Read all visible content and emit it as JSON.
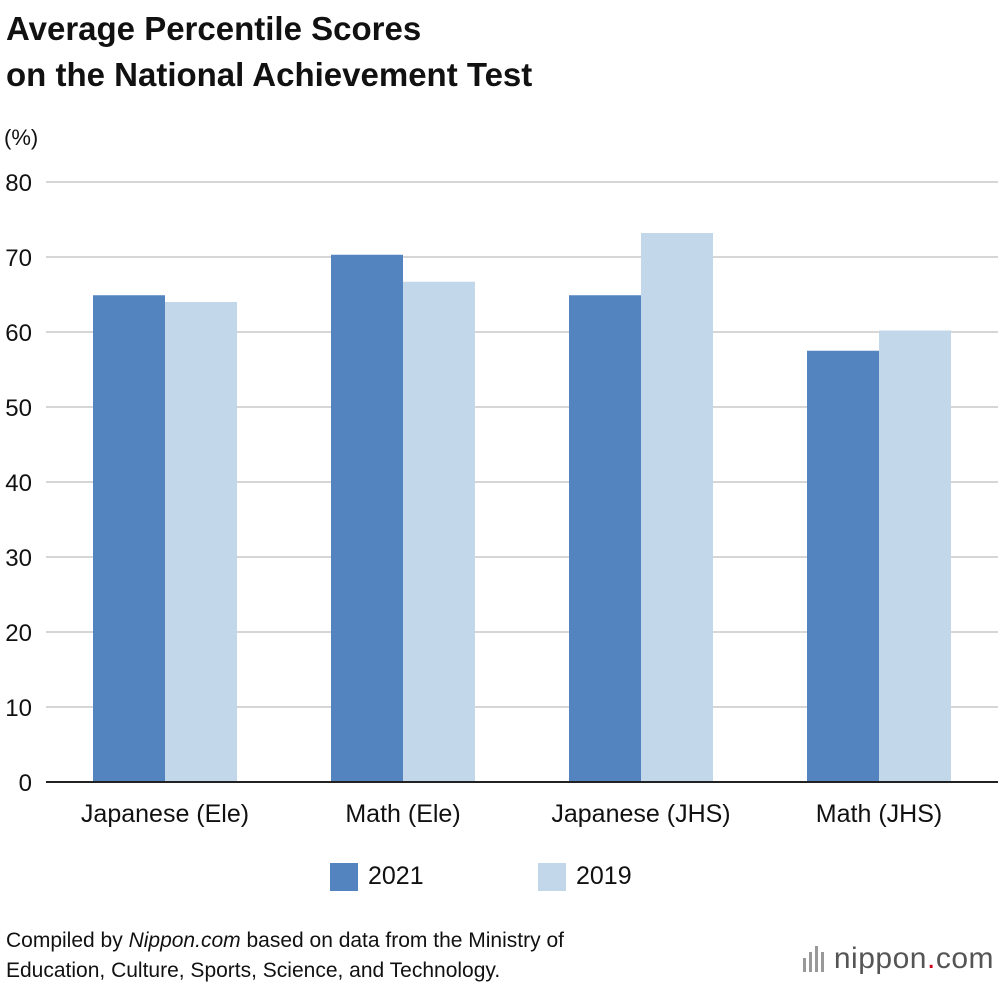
{
  "title_line1": "Average Percentile Scores",
  "title_line2": "on the National Achievement Test",
  "unit_label": "(%)",
  "footer": {
    "prefix": "Compiled by ",
    "source": "Nippon.com",
    "suffix": " based on data from the Ministry of",
    "line2": "Education, Culture, Sports, Science, and Technology."
  },
  "brand": {
    "name": "nippon",
    "dot": ".",
    "tld": "com"
  },
  "chart_data": {
    "type": "bar",
    "categories": [
      "Japanese (Ele)",
      "Math (Ele)",
      "Japanese (JHS)",
      "Math (JHS)"
    ],
    "series": [
      {
        "name": "2021",
        "color": "#5384c0",
        "values": [
          64.9,
          70.3,
          64.9,
          57.5
        ]
      },
      {
        "name": "2019",
        "color": "#c2d8ea",
        "values": [
          64.0,
          66.7,
          73.2,
          60.2
        ]
      }
    ],
    "ylim": [
      0,
      80
    ],
    "yticks": [
      0,
      10,
      20,
      30,
      40,
      50,
      60,
      70,
      80
    ],
    "ylabel": "(%)",
    "grid": true,
    "legend_position": "bottom"
  }
}
